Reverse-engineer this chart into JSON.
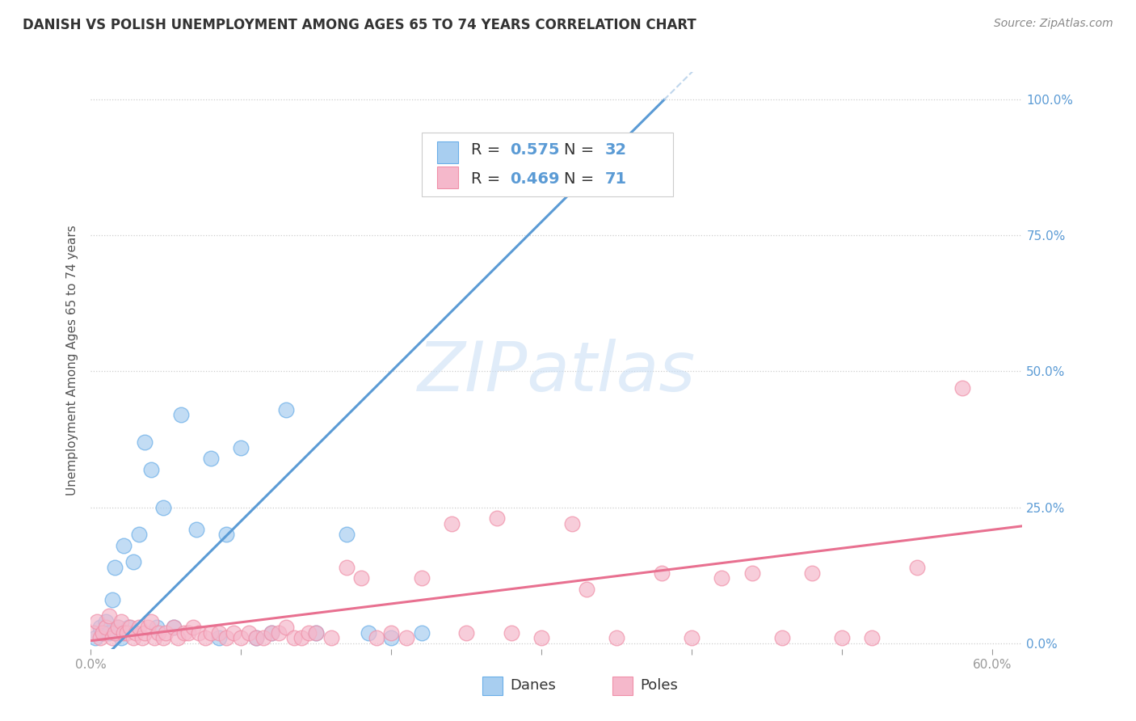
{
  "title": "DANISH VS POLISH UNEMPLOYMENT AMONG AGES 65 TO 74 YEARS CORRELATION CHART",
  "source": "Source: ZipAtlas.com",
  "ylabel": "Unemployment Among Ages 65 to 74 years",
  "xlim": [
    0.0,
    0.62
  ],
  "ylim": [
    -0.01,
    1.05
  ],
  "yticks": [
    0.0,
    0.25,
    0.5,
    0.75,
    1.0
  ],
  "ytick_labels_right": [
    "0.0%",
    "25.0%",
    "50.0%",
    "75.0%",
    "100.0%"
  ],
  "legend_r_danes": "0.575",
  "legend_n_danes": "32",
  "legend_r_poles": "0.469",
  "legend_n_poles": "71",
  "danes_color": "#a8cef0",
  "danes_edge_color": "#6aaee8",
  "poles_color": "#f5b8cb",
  "poles_edge_color": "#f090a8",
  "danes_line_color": "#5b9bd5",
  "danes_dash_color": "#b0cce8",
  "poles_line_color": "#e87090",
  "watermark_text": "ZIPatlas",
  "watermark_color": "#cce0f5",
  "background_color": "#ffffff",
  "grid_color": "#c8c8c8",
  "right_axis_color": "#5b9bd5",
  "legend_text_color": "#5b9bd5",
  "title_color": "#333333",
  "source_color": "#888888",
  "danes_x": [
    0.003,
    0.006,
    0.008,
    0.01,
    0.012,
    0.014,
    0.016,
    0.018,
    0.02,
    0.022,
    0.025,
    0.028,
    0.032,
    0.036,
    0.04,
    0.044,
    0.048,
    0.055,
    0.06,
    0.07,
    0.08,
    0.085,
    0.09,
    0.1,
    0.11,
    0.12,
    0.13,
    0.15,
    0.17,
    0.185,
    0.2,
    0.22
  ],
  "danes_y": [
    0.01,
    0.03,
    0.02,
    0.04,
    0.02,
    0.08,
    0.14,
    0.03,
    0.01,
    0.18,
    0.03,
    0.15,
    0.2,
    0.37,
    0.32,
    0.03,
    0.25,
    0.03,
    0.42,
    0.21,
    0.34,
    0.01,
    0.2,
    0.36,
    0.01,
    0.02,
    0.43,
    0.02,
    0.2,
    0.02,
    0.01,
    0.02
  ],
  "poles_x": [
    0.002,
    0.004,
    0.006,
    0.008,
    0.01,
    0.012,
    0.014,
    0.016,
    0.018,
    0.02,
    0.022,
    0.024,
    0.026,
    0.028,
    0.03,
    0.032,
    0.034,
    0.036,
    0.038,
    0.04,
    0.042,
    0.045,
    0.048,
    0.05,
    0.055,
    0.058,
    0.062,
    0.065,
    0.068,
    0.072,
    0.076,
    0.08,
    0.085,
    0.09,
    0.095,
    0.1,
    0.105,
    0.11,
    0.115,
    0.12,
    0.125,
    0.13,
    0.135,
    0.14,
    0.145,
    0.15,
    0.16,
    0.17,
    0.18,
    0.19,
    0.2,
    0.21,
    0.22,
    0.24,
    0.25,
    0.27,
    0.28,
    0.3,
    0.32,
    0.33,
    0.35,
    0.38,
    0.4,
    0.42,
    0.44,
    0.46,
    0.48,
    0.5,
    0.52,
    0.55,
    0.58
  ],
  "poles_y": [
    0.02,
    0.04,
    0.01,
    0.02,
    0.03,
    0.05,
    0.01,
    0.02,
    0.03,
    0.04,
    0.02,
    0.02,
    0.03,
    0.01,
    0.02,
    0.03,
    0.01,
    0.02,
    0.03,
    0.04,
    0.01,
    0.02,
    0.01,
    0.02,
    0.03,
    0.01,
    0.02,
    0.02,
    0.03,
    0.02,
    0.01,
    0.02,
    0.02,
    0.01,
    0.02,
    0.01,
    0.02,
    0.01,
    0.01,
    0.02,
    0.02,
    0.03,
    0.01,
    0.01,
    0.02,
    0.02,
    0.01,
    0.14,
    0.12,
    0.01,
    0.02,
    0.01,
    0.12,
    0.22,
    0.02,
    0.23,
    0.02,
    0.01,
    0.22,
    0.1,
    0.01,
    0.13,
    0.01,
    0.12,
    0.13,
    0.01,
    0.13,
    0.01,
    0.01,
    0.14,
    0.47
  ],
  "danes_slope": 2.75,
  "danes_intercept": -0.05,
  "poles_slope": 0.34,
  "poles_intercept": 0.005,
  "title_fontsize": 12,
  "source_fontsize": 10,
  "tick_fontsize": 11,
  "ylabel_fontsize": 11,
  "legend_fontsize": 14
}
